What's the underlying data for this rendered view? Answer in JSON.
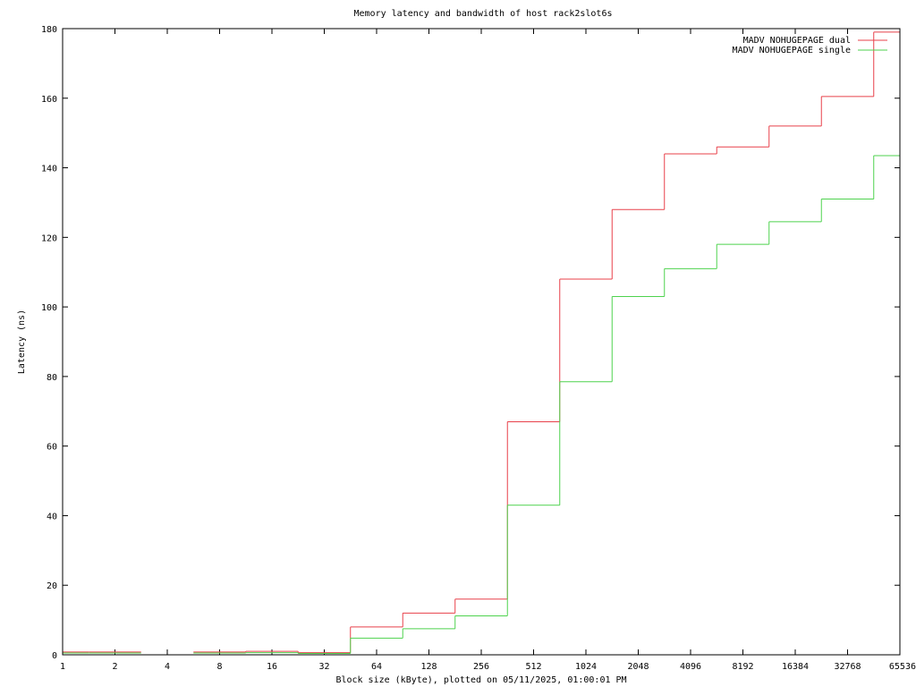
{
  "chart_data": {
    "type": "line",
    "title": "Memory latency and bandwidth of host rack2slot6s",
    "xlabel": "Block size (kByte), plotted on 05/11/2025, 01:00:01 PM",
    "ylabel": "Latency (ns)",
    "x_scale": "log2",
    "xlim": [
      1,
      65536
    ],
    "ylim": [
      0,
      180
    ],
    "x_ticks": [
      "1",
      "2",
      "4",
      "8",
      "16",
      "32",
      "64",
      "128",
      "256",
      "512",
      "1024",
      "2048",
      "4096",
      "8192",
      "16384",
      "32768",
      "65536"
    ],
    "y_ticks": [
      "0",
      "20",
      "40",
      "60",
      "80",
      "100",
      "120",
      "140",
      "160",
      "180"
    ],
    "grid": false,
    "legend_position": "top-right",
    "series": [
      {
        "name": "MADV NOHUGEPAGE dual",
        "color": "#e8414a",
        "step": "mid",
        "x": [
          1,
          2,
          8,
          16,
          32,
          64,
          128,
          256,
          512,
          1024,
          2048,
          4096,
          8192,
          16384,
          32768,
          65536
        ],
        "y": [
          0.8,
          0.8,
          0.8,
          1.0,
          0.6,
          8.0,
          12.0,
          16.0,
          67.0,
          108.0,
          128.0,
          144.0,
          146.0,
          152.0,
          160.5,
          179.0
        ]
      },
      {
        "name": "MADV NOHUGEPAGE single",
        "color": "#4ed24e",
        "step": "mid",
        "x": [
          1,
          2,
          8,
          16,
          32,
          64,
          128,
          256,
          512,
          1024,
          2048,
          4096,
          8192,
          16384,
          32768,
          65536
        ],
        "y": [
          0.5,
          0.5,
          0.5,
          0.6,
          0.4,
          4.8,
          7.5,
          11.2,
          43.0,
          78.5,
          103.0,
          111.0,
          118.0,
          124.5,
          131.0,
          143.5
        ]
      }
    ]
  }
}
